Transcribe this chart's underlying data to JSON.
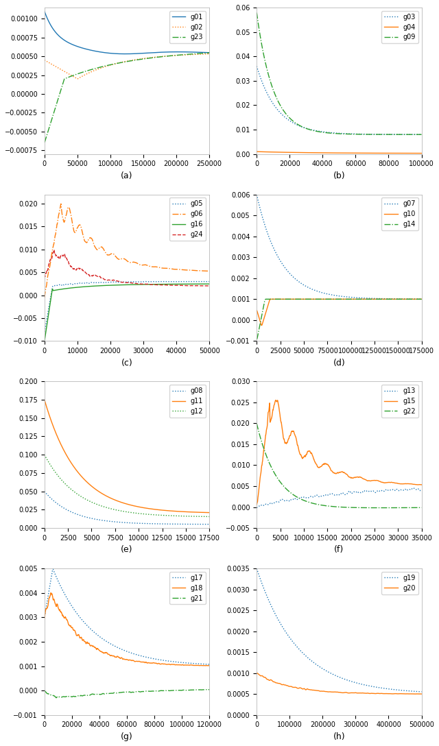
{
  "subplots": [
    {
      "label": "(a)",
      "series": [
        {
          "name": "g01",
          "color": "#1f77b4",
          "linestyle": "-"
        },
        {
          "name": "g02",
          "color": "#ff7f0e",
          "linestyle": ":"
        },
        {
          "name": "g23",
          "color": "#2ca02c",
          "linestyle": "-."
        }
      ],
      "xlim": [
        0,
        250000
      ],
      "ylim": [
        -0.0008,
        0.00115
      ],
      "xticks": [
        0,
        50000,
        100000,
        150000,
        200000,
        250000
      ],
      "label_pos": "bottom"
    },
    {
      "label": "(b)",
      "series": [
        {
          "name": "g03",
          "color": "#1f77b4",
          "linestyle": ":"
        },
        {
          "name": "g04",
          "color": "#ff7f0e",
          "linestyle": "-"
        },
        {
          "name": "g09",
          "color": "#2ca02c",
          "linestyle": "-."
        }
      ],
      "xlim": [
        0,
        100000
      ],
      "ylim": [
        0,
        0.06
      ],
      "xticks": [
        0,
        20000,
        40000,
        60000,
        80000,
        100000
      ],
      "label_pos": "bottom"
    },
    {
      "label": "(c)",
      "series": [
        {
          "name": "g05",
          "color": "#1f77b4",
          "linestyle": ":"
        },
        {
          "name": "g06",
          "color": "#ff7f0e",
          "linestyle": "-."
        },
        {
          "name": "g16",
          "color": "#2ca02c",
          "linestyle": "-"
        },
        {
          "name": "g24",
          "color": "#d62728",
          "linestyle": "--"
        }
      ],
      "xlim": [
        0,
        50000
      ],
      "ylim": [
        -0.01,
        0.022
      ],
      "xticks": [
        0,
        10000,
        20000,
        30000,
        40000,
        50000
      ],
      "label_pos": "bottom"
    },
    {
      "label": "(d)",
      "series": [
        {
          "name": "g07",
          "color": "#1f77b4",
          "linestyle": ":"
        },
        {
          "name": "g10",
          "color": "#ff7f0e",
          "linestyle": "-"
        },
        {
          "name": "g14",
          "color": "#2ca02c",
          "linestyle": "-."
        }
      ],
      "xlim": [
        0,
        175000
      ],
      "ylim": [
        -0.001,
        0.006
      ],
      "xticks": [
        0,
        25000,
        50000,
        75000,
        100000,
        125000,
        150000,
        175000
      ],
      "label_pos": "bottom"
    },
    {
      "label": "(e)",
      "series": [
        {
          "name": "g08",
          "color": "#1f77b4",
          "linestyle": ":"
        },
        {
          "name": "g11",
          "color": "#ff7f0e",
          "linestyle": "-"
        },
        {
          "name": "g12",
          "color": "#2ca02c",
          "linestyle": ":"
        }
      ],
      "xlim": [
        0,
        17500
      ],
      "ylim": [
        0,
        0.2
      ],
      "xticks": [
        0,
        2500,
        5000,
        7500,
        10000,
        12500,
        15000,
        17500
      ],
      "label_pos": "bottom"
    },
    {
      "label": "(f)",
      "series": [
        {
          "name": "g13",
          "color": "#1f77b4",
          "linestyle": ":"
        },
        {
          "name": "g15",
          "color": "#ff7f0e",
          "linestyle": "-"
        },
        {
          "name": "g22",
          "color": "#2ca02c",
          "linestyle": "-."
        }
      ],
      "xlim": [
        0,
        35000
      ],
      "ylim": [
        -0.005,
        0.03
      ],
      "xticks": [
        0,
        5000,
        10000,
        15000,
        20000,
        25000,
        30000,
        35000
      ],
      "label_pos": "bottom"
    },
    {
      "label": "(g)",
      "series": [
        {
          "name": "g17",
          "color": "#1f77b4",
          "linestyle": ":"
        },
        {
          "name": "g18",
          "color": "#ff7f0e",
          "linestyle": "-"
        },
        {
          "name": "g21",
          "color": "#2ca02c",
          "linestyle": "-."
        }
      ],
      "xlim": [
        0,
        120000
      ],
      "ylim": [
        -0.001,
        0.005
      ],
      "xticks": [
        0,
        20000,
        40000,
        60000,
        80000,
        100000,
        120000
      ],
      "label_pos": "bottom"
    },
    {
      "label": "(h)",
      "series": [
        {
          "name": "g19",
          "color": "#1f77b4",
          "linestyle": ":"
        },
        {
          "name": "g20",
          "color": "#ff7f0e",
          "linestyle": "-"
        }
      ],
      "xlim": [
        0,
        500000
      ],
      "ylim": [
        0,
        0.0035
      ],
      "xticks": [
        0,
        100000,
        200000,
        300000,
        400000,
        500000
      ],
      "label_pos": "bottom"
    }
  ]
}
